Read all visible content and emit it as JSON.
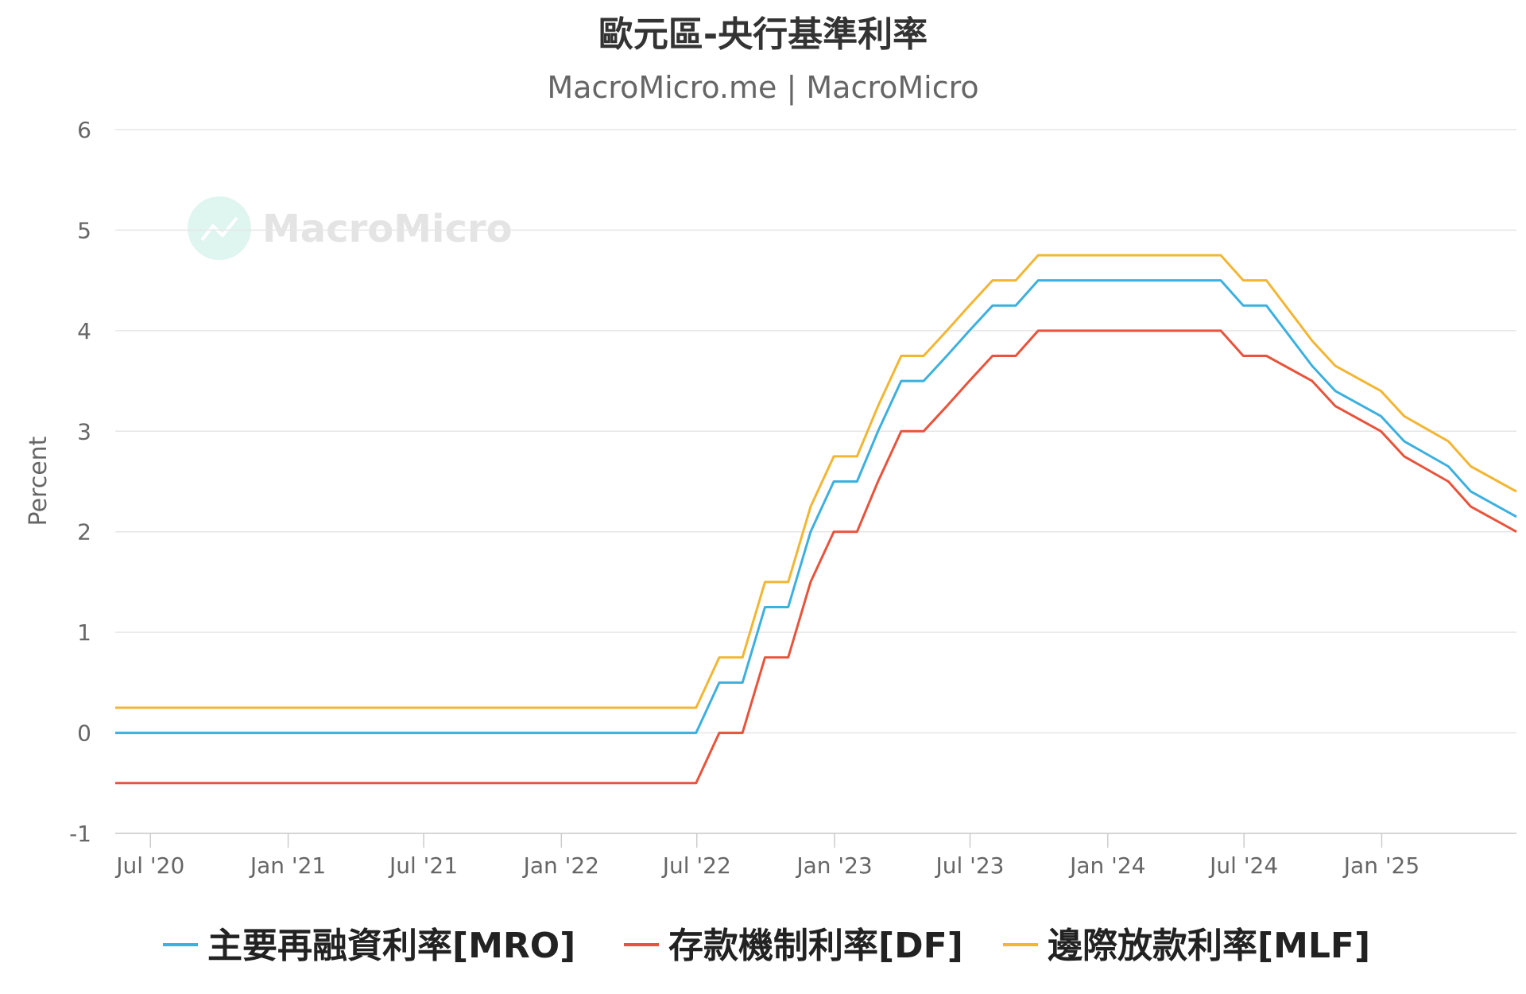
{
  "chart_data": {
    "type": "line",
    "title": "歐元區-央行基準利率",
    "subtitle": "MacroMicro.me | MacroMicro",
    "watermark": "MacroMicro",
    "ylabel": "Percent",
    "ylim": [
      -1,
      6
    ],
    "yticks": [
      -1,
      0,
      1,
      2,
      3,
      4,
      5,
      6
    ],
    "xlim": [
      "2020-05-15",
      "2025-06-30"
    ],
    "xticks": [
      {
        "date": "2020-07-01",
        "label": "Jul '20"
      },
      {
        "date": "2021-01-01",
        "label": "Jan '21"
      },
      {
        "date": "2021-07-01",
        "label": "Jul '21"
      },
      {
        "date": "2022-01-01",
        "label": "Jan '22"
      },
      {
        "date": "2022-07-01",
        "label": "Jul '22"
      },
      {
        "date": "2023-01-01",
        "label": "Jan '23"
      },
      {
        "date": "2023-07-01",
        "label": "Jul '23"
      },
      {
        "date": "2024-01-01",
        "label": "Jan '24"
      },
      {
        "date": "2024-07-01",
        "label": "Jul '24"
      },
      {
        "date": "2025-01-01",
        "label": "Jan '25"
      }
    ],
    "grid": true,
    "legend_position": "bottom",
    "series": [
      {
        "name": "主要再融資利率[MRO]",
        "color": "#3cb0de",
        "points": [
          [
            "2020-05-15",
            0
          ],
          [
            "2022-06-30",
            0
          ],
          [
            "2022-07-31",
            0.5
          ],
          [
            "2022-08-31",
            0.5
          ],
          [
            "2022-09-30",
            1.25
          ],
          [
            "2022-10-31",
            1.25
          ],
          [
            "2022-11-30",
            2.0
          ],
          [
            "2022-12-31",
            2.5
          ],
          [
            "2023-01-31",
            2.5
          ],
          [
            "2023-02-28",
            3.0
          ],
          [
            "2023-03-31",
            3.5
          ],
          [
            "2023-04-30",
            3.5
          ],
          [
            "2023-05-31",
            3.75
          ],
          [
            "2023-06-30",
            4.0
          ],
          [
            "2023-07-31",
            4.25
          ],
          [
            "2023-08-31",
            4.25
          ],
          [
            "2023-09-30",
            4.5
          ],
          [
            "2024-05-31",
            4.5
          ],
          [
            "2024-06-30",
            4.25
          ],
          [
            "2024-07-31",
            4.25
          ],
          [
            "2024-09-30",
            3.65
          ],
          [
            "2024-10-31",
            3.4
          ],
          [
            "2024-12-31",
            3.15
          ],
          [
            "2025-01-31",
            2.9
          ],
          [
            "2025-03-31",
            2.65
          ],
          [
            "2025-04-30",
            2.4
          ],
          [
            "2025-06-30",
            2.15
          ]
        ]
      },
      {
        "name": "存款機制利率[DF]",
        "color": "#e8533b",
        "points": [
          [
            "2020-05-15",
            -0.5
          ],
          [
            "2022-06-30",
            -0.5
          ],
          [
            "2022-07-31",
            0
          ],
          [
            "2022-08-31",
            0
          ],
          [
            "2022-09-30",
            0.75
          ],
          [
            "2022-10-31",
            0.75
          ],
          [
            "2022-11-30",
            1.5
          ],
          [
            "2022-12-31",
            2.0
          ],
          [
            "2023-01-31",
            2.0
          ],
          [
            "2023-02-28",
            2.5
          ],
          [
            "2023-03-31",
            3.0
          ],
          [
            "2023-04-30",
            3.0
          ],
          [
            "2023-05-31",
            3.25
          ],
          [
            "2023-06-30",
            3.5
          ],
          [
            "2023-07-31",
            3.75
          ],
          [
            "2023-08-31",
            3.75
          ],
          [
            "2023-09-30",
            4.0
          ],
          [
            "2024-05-31",
            4.0
          ],
          [
            "2024-06-30",
            3.75
          ],
          [
            "2024-07-31",
            3.75
          ],
          [
            "2024-09-30",
            3.5
          ],
          [
            "2024-10-31",
            3.25
          ],
          [
            "2024-12-31",
            3.0
          ],
          [
            "2025-01-31",
            2.75
          ],
          [
            "2025-03-31",
            2.5
          ],
          [
            "2025-04-30",
            2.25
          ],
          [
            "2025-06-30",
            2.0
          ]
        ]
      },
      {
        "name": "邊際放款利率[MLF]",
        "color": "#f2b632",
        "points": [
          [
            "2020-05-15",
            0.25
          ],
          [
            "2022-06-30",
            0.25
          ],
          [
            "2022-07-31",
            0.75
          ],
          [
            "2022-08-31",
            0.75
          ],
          [
            "2022-09-30",
            1.5
          ],
          [
            "2022-10-31",
            1.5
          ],
          [
            "2022-11-30",
            2.25
          ],
          [
            "2022-12-31",
            2.75
          ],
          [
            "2023-01-31",
            2.75
          ],
          [
            "2023-02-28",
            3.25
          ],
          [
            "2023-03-31",
            3.75
          ],
          [
            "2023-04-30",
            3.75
          ],
          [
            "2023-05-31",
            4.0
          ],
          [
            "2023-06-30",
            4.25
          ],
          [
            "2023-07-31",
            4.5
          ],
          [
            "2023-08-31",
            4.5
          ],
          [
            "2023-09-30",
            4.75
          ],
          [
            "2024-05-31",
            4.75
          ],
          [
            "2024-06-30",
            4.5
          ],
          [
            "2024-07-31",
            4.5
          ],
          [
            "2024-09-30",
            3.9
          ],
          [
            "2024-10-31",
            3.65
          ],
          [
            "2024-12-31",
            3.4
          ],
          [
            "2025-01-31",
            3.15
          ],
          [
            "2025-03-31",
            2.9
          ],
          [
            "2025-04-30",
            2.65
          ],
          [
            "2025-06-30",
            2.4
          ]
        ]
      }
    ]
  }
}
